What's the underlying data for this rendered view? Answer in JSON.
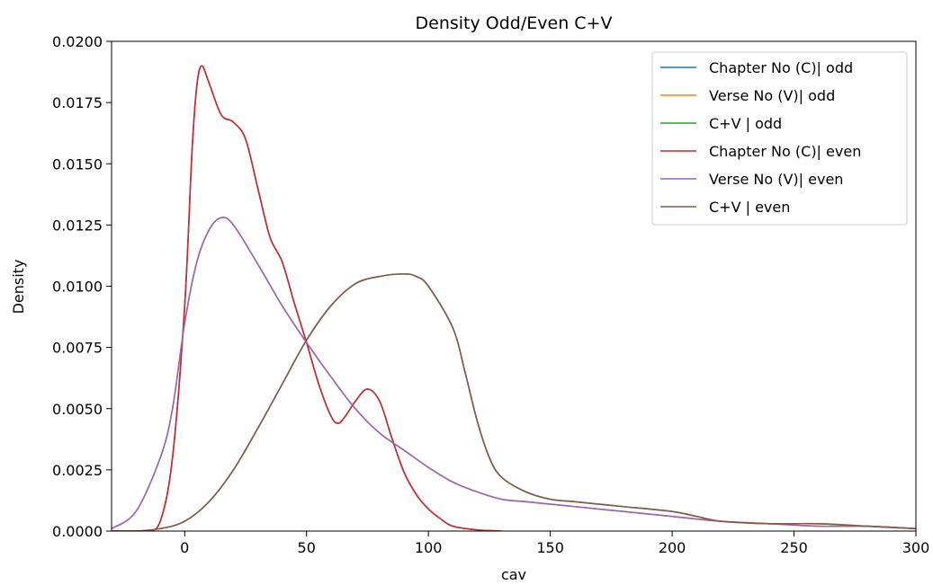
{
  "chart_data": {
    "type": "line",
    "title": "Density Odd/Even C+V",
    "xlabel": "cav",
    "ylabel": "Density",
    "xlim": [
      -30,
      300
    ],
    "ylim": [
      0,
      0.02
    ],
    "xticks": [
      0,
      50,
      100,
      150,
      200,
      250,
      300
    ],
    "yticks": [
      "0.0000",
      "0.0025",
      "0.0050",
      "0.0075",
      "0.0100",
      "0.0125",
      "0.0150",
      "0.0175",
      "0.0200"
    ],
    "grid": false,
    "legend_position": "top-right",
    "series": [
      {
        "name": "Chapter No (C)| odd",
        "color": "#1f77b4",
        "points": [
          [
            -30,
            0
          ],
          [
            -15,
            0
          ],
          [
            -10,
            0.0004
          ],
          [
            -5,
            0.003
          ],
          [
            0,
            0.0092
          ],
          [
            3,
            0.0155
          ],
          [
            5,
            0.0182
          ],
          [
            7,
            0.019
          ],
          [
            10,
            0.0183
          ],
          [
            15,
            0.017
          ],
          [
            20,
            0.0167
          ],
          [
            25,
            0.016
          ],
          [
            30,
            0.014
          ],
          [
            35,
            0.012
          ],
          [
            40,
            0.011
          ],
          [
            45,
            0.0093
          ],
          [
            50,
            0.0077
          ],
          [
            55,
            0.006
          ],
          [
            60,
            0.0047
          ],
          [
            63,
            0.0044
          ],
          [
            66,
            0.0047
          ],
          [
            70,
            0.0053
          ],
          [
            75,
            0.0058
          ],
          [
            80,
            0.0053
          ],
          [
            85,
            0.0038
          ],
          [
            90,
            0.0024
          ],
          [
            95,
            0.0015
          ],
          [
            100,
            0.0009
          ],
          [
            105,
            0.0005
          ],
          [
            110,
            0.0002
          ],
          [
            120,
            5e-05
          ],
          [
            130,
            0
          ]
        ]
      },
      {
        "name": "Verse No (V)| odd",
        "color": "#ff7f0e",
        "points": [
          [
            -30,
            0.0001
          ],
          [
            -20,
            0.0008
          ],
          [
            -10,
            0.003
          ],
          [
            -5,
            0.005
          ],
          [
            0,
            0.0085
          ],
          [
            5,
            0.011
          ],
          [
            10,
            0.0123
          ],
          [
            15,
            0.0128
          ],
          [
            20,
            0.0125
          ],
          [
            30,
            0.0109
          ],
          [
            40,
            0.0092
          ],
          [
            50,
            0.0077
          ],
          [
            60,
            0.0063
          ],
          [
            70,
            0.005
          ],
          [
            80,
            0.004
          ],
          [
            90,
            0.0033
          ],
          [
            100,
            0.0026
          ],
          [
            110,
            0.002
          ],
          [
            120,
            0.0016
          ],
          [
            130,
            0.0013
          ],
          [
            140,
            0.0012
          ],
          [
            150,
            0.0011
          ],
          [
            160,
            0.001
          ],
          [
            180,
            0.0008
          ],
          [
            200,
            0.0006
          ],
          [
            220,
            0.0004
          ],
          [
            240,
            0.0003
          ],
          [
            260,
            0.0002
          ],
          [
            280,
            0.0002
          ],
          [
            300,
            0.0001
          ]
        ]
      },
      {
        "name": "C+V | odd",
        "color": "#2ca02c",
        "points": [
          [
            -30,
            0
          ],
          [
            -20,
            0
          ],
          [
            -10,
            0.0001
          ],
          [
            0,
            0.0004
          ],
          [
            10,
            0.0012
          ],
          [
            20,
            0.0025
          ],
          [
            30,
            0.0042
          ],
          [
            40,
            0.006
          ],
          [
            50,
            0.0078
          ],
          [
            60,
            0.0092
          ],
          [
            70,
            0.0101
          ],
          [
            80,
            0.0104
          ],
          [
            90,
            0.0105
          ],
          [
            95,
            0.0104
          ],
          [
            100,
            0.01
          ],
          [
            110,
            0.0083
          ],
          [
            115,
            0.0065
          ],
          [
            120,
            0.0045
          ],
          [
            125,
            0.003
          ],
          [
            130,
            0.0022
          ],
          [
            140,
            0.0016
          ],
          [
            150,
            0.0013
          ],
          [
            160,
            0.0012
          ],
          [
            170,
            0.0011
          ],
          [
            180,
            0.001
          ],
          [
            200,
            0.0008
          ],
          [
            210,
            0.0006
          ],
          [
            220,
            0.0004
          ],
          [
            240,
            0.0003
          ],
          [
            260,
            0.0003
          ],
          [
            280,
            0.0002
          ],
          [
            300,
            0.0001
          ]
        ]
      },
      {
        "name": "Chapter No (C)| even",
        "color": "#d62728",
        "points": [
          [
            -30,
            0
          ],
          [
            -15,
            0
          ],
          [
            -10,
            0.0004
          ],
          [
            -5,
            0.003
          ],
          [
            0,
            0.0092
          ],
          [
            3,
            0.0155
          ],
          [
            5,
            0.0182
          ],
          [
            7,
            0.019
          ],
          [
            10,
            0.0183
          ],
          [
            15,
            0.017
          ],
          [
            20,
            0.0167
          ],
          [
            25,
            0.016
          ],
          [
            30,
            0.014
          ],
          [
            35,
            0.012
          ],
          [
            40,
            0.011
          ],
          [
            45,
            0.0093
          ],
          [
            50,
            0.0077
          ],
          [
            55,
            0.006
          ],
          [
            60,
            0.0047
          ],
          [
            63,
            0.0044
          ],
          [
            66,
            0.0047
          ],
          [
            70,
            0.0053
          ],
          [
            75,
            0.0058
          ],
          [
            80,
            0.0053
          ],
          [
            85,
            0.0038
          ],
          [
            90,
            0.0024
          ],
          [
            95,
            0.0015
          ],
          [
            100,
            0.0009
          ],
          [
            105,
            0.0005
          ],
          [
            110,
            0.0002
          ],
          [
            120,
            5e-05
          ],
          [
            130,
            0
          ]
        ]
      },
      {
        "name": "Verse No (V)| even",
        "color": "#9467bd",
        "points": [
          [
            -30,
            0.0001
          ],
          [
            -20,
            0.0008
          ],
          [
            -10,
            0.003
          ],
          [
            -5,
            0.005
          ],
          [
            0,
            0.0085
          ],
          [
            5,
            0.011
          ],
          [
            10,
            0.0123
          ],
          [
            15,
            0.0128
          ],
          [
            20,
            0.0125
          ],
          [
            30,
            0.0109
          ],
          [
            40,
            0.0092
          ],
          [
            50,
            0.0077
          ],
          [
            60,
            0.0063
          ],
          [
            70,
            0.005
          ],
          [
            80,
            0.004
          ],
          [
            90,
            0.0033
          ],
          [
            100,
            0.0026
          ],
          [
            110,
            0.002
          ],
          [
            120,
            0.0016
          ],
          [
            130,
            0.0013
          ],
          [
            140,
            0.0012
          ],
          [
            150,
            0.0011
          ],
          [
            160,
            0.001
          ],
          [
            180,
            0.0008
          ],
          [
            200,
            0.0006
          ],
          [
            220,
            0.0004
          ],
          [
            240,
            0.0003
          ],
          [
            260,
            0.0002
          ],
          [
            280,
            0.0002
          ],
          [
            300,
            0.0001
          ]
        ]
      },
      {
        "name": "C+V | even",
        "color": "#8c564b",
        "points": [
          [
            -30,
            0
          ],
          [
            -20,
            0
          ],
          [
            -10,
            0.0001
          ],
          [
            0,
            0.0004
          ],
          [
            10,
            0.0012
          ],
          [
            20,
            0.0025
          ],
          [
            30,
            0.0042
          ],
          [
            40,
            0.006
          ],
          [
            50,
            0.0078
          ],
          [
            60,
            0.0092
          ],
          [
            70,
            0.0101
          ],
          [
            80,
            0.0104
          ],
          [
            90,
            0.0105
          ],
          [
            95,
            0.0104
          ],
          [
            100,
            0.01
          ],
          [
            110,
            0.0083
          ],
          [
            115,
            0.0065
          ],
          [
            120,
            0.0045
          ],
          [
            125,
            0.003
          ],
          [
            130,
            0.0022
          ],
          [
            140,
            0.0016
          ],
          [
            150,
            0.0013
          ],
          [
            160,
            0.0012
          ],
          [
            170,
            0.0011
          ],
          [
            180,
            0.001
          ],
          [
            200,
            0.0008
          ],
          [
            210,
            0.0006
          ],
          [
            220,
            0.0004
          ],
          [
            240,
            0.0003
          ],
          [
            260,
            0.0003
          ],
          [
            280,
            0.0002
          ],
          [
            300,
            0.0001
          ]
        ]
      }
    ]
  }
}
